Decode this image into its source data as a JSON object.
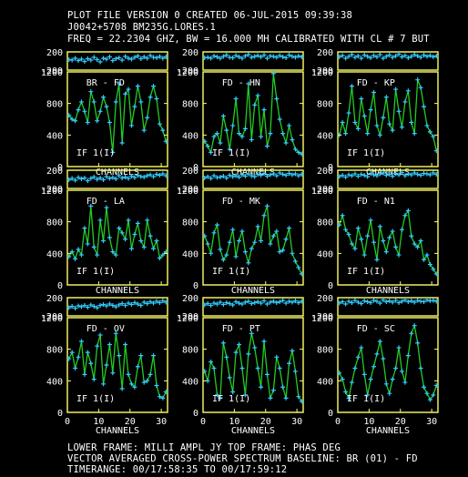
{
  "header": {
    "line1": "PLOT FILE VERSION 0  CREATED 06-JUL-2015 09:39:38",
    "line2": "J0042+5708    BM235G.LORES.1",
    "line3": "FREQ = 22.2304 GHZ, BW = 16.000 MH   CALIBRATED WITH CL # 7 BUT"
  },
  "footer": {
    "line1": "LOWER FRAME: MILLI AMPL JY   TOP FRAME: PHAS DEG",
    "line2": "VECTOR AVERAGED CROSS-POWER SPECTRUM   BASELINE: BR (01) - FD",
    "line3": "TIMERANGE: 00/17:58:35 TO 00/17:59:12"
  },
  "colors": {
    "background": "#000000",
    "frame": "#ffff66",
    "amplitude_line": "#22cc22",
    "marker": "#33ccff",
    "text": "#ffffff"
  },
  "chart_data": {
    "type": "line",
    "xlabel": "CHANNELS",
    "x_ticks": [
      "0",
      "10",
      "20",
      "30"
    ],
    "xlim": [
      0,
      32
    ],
    "phase_ylim": [
      -200,
      200
    ],
    "phase_ticks": [
      "200",
      "-200"
    ],
    "amp_ylim": [
      0,
      1200
    ],
    "amp_ticks": [
      "0",
      "400",
      "800",
      "1200"
    ],
    "panels": [
      {
        "baseline": "BR - FD",
        "if_label": "IF 1(I)",
        "phase": [
          30,
          20,
          60,
          10,
          40,
          -10,
          50,
          20,
          80,
          30,
          -20,
          60,
          40,
          90,
          10,
          50,
          70,
          20,
          100,
          60,
          40,
          80,
          110,
          50,
          90,
          60,
          120,
          80,
          70,
          100,
          60,
          90
        ],
        "amplitude": [
          650,
          600,
          580,
          720,
          820,
          700,
          560,
          950,
          820,
          580,
          700,
          880,
          760,
          560,
          180,
          820,
          1050,
          300,
          920,
          980,
          520,
          760,
          1020,
          820,
          460,
          620,
          880,
          1020,
          860,
          540,
          460,
          320
        ]
      },
      {
        "baseline": "FD - HN",
        "if_label": "IF 1(I)",
        "phase": [
          70,
          80,
          60,
          110,
          90,
          60,
          100,
          130,
          80,
          70,
          120,
          90,
          60,
          110,
          140,
          80,
          100,
          120,
          90,
          130,
          60,
          110,
          100,
          80,
          120,
          90,
          70,
          130,
          100,
          80,
          110,
          90
        ],
        "amplitude": [
          320,
          260,
          180,
          380,
          420,
          300,
          640,
          460,
          220,
          520,
          860,
          420,
          380,
          480,
          1050,
          340,
          780,
          900,
          380,
          720,
          260,
          420,
          1180,
          860,
          600,
          420,
          300,
          520,
          340,
          220,
          180,
          160
        ]
      },
      {
        "baseline": "FD - KP",
        "if_label": "IF 1(I)",
        "phase": [
          90,
          120,
          60,
          100,
          140,
          80,
          110,
          60,
          130,
          100,
          70,
          120,
          90,
          140,
          60,
          100,
          130,
          80,
          110,
          150,
          90,
          120,
          70,
          100,
          140,
          110,
          80,
          130,
          100,
          120,
          90,
          110
        ],
        "amplitude": [
          400,
          560,
          420,
          680,
          1020,
          560,
          480,
          860,
          640,
          420,
          720,
          940,
          520,
          400,
          620,
          880,
          540,
          460,
          980,
          700,
          500,
          820,
          960,
          560,
          420,
          1100,
          1000,
          760,
          520,
          440,
          380,
          200
        ]
      },
      {
        "baseline": "FD - LA",
        "if_label": "IF 1(I)",
        "phase": [
          -10,
          20,
          -20,
          40,
          10,
          30,
          -30,
          20,
          50,
          0,
          30,
          -10,
          60,
          20,
          40,
          10,
          80,
          30,
          50,
          20,
          70,
          40,
          90,
          60,
          50,
          80,
          100,
          60,
          110,
          90,
          120,
          80
        ],
        "amplitude": [
          360,
          420,
          330,
          450,
          380,
          720,
          520,
          1000,
          480,
          380,
          820,
          560,
          980,
          600,
          420,
          380,
          720,
          660,
          580,
          820,
          460,
          640,
          780,
          560,
          480,
          820,
          620,
          460,
          560,
          340,
          380,
          420
        ]
      },
      {
        "baseline": "FD - MK",
        "if_label": "IF 1(I)",
        "phase": [
          30,
          60,
          20,
          80,
          40,
          50,
          70,
          30,
          90,
          60,
          80,
          50,
          100,
          70,
          120,
          80,
          60,
          110,
          90,
          130,
          70,
          100,
          120,
          80,
          140,
          110,
          90,
          130,
          100,
          120,
          80,
          110
        ],
        "amplitude": [
          620,
          520,
          400,
          660,
          760,
          450,
          320,
          380,
          540,
          700,
          360,
          560,
          680,
          420,
          280,
          460,
          540,
          740,
          560,
          880,
          1000,
          520,
          620,
          680,
          420,
          440,
          580,
          720,
          400,
          300,
          220,
          140
        ]
      },
      {
        "baseline": "FD - N1",
        "if_label": "IF 1(I)",
        "phase": [
          60,
          90,
          50,
          100,
          80,
          120,
          70,
          110,
          90,
          60,
          130,
          100,
          80,
          120,
          140,
          90,
          110,
          70,
          130,
          100,
          150,
          80,
          120,
          100,
          140,
          110,
          90,
          130,
          120,
          100,
          140,
          110
        ],
        "amplitude": [
          760,
          880,
          700,
          640,
          520,
          460,
          720,
          580,
          380,
          620,
          820,
          540,
          320,
          740,
          560,
          420,
          600,
          680,
          480,
          380,
          700,
          880,
          940,
          620,
          520,
          480,
          560,
          320,
          380,
          260,
          200,
          140
        ]
      },
      {
        "baseline": "FD - OV",
        "if_label": "IF 1(I)",
        "phase": [
          -20,
          10,
          -30,
          20,
          0,
          30,
          -10,
          40,
          10,
          -20,
          30,
          50,
          20,
          60,
          30,
          0,
          40,
          70,
          30,
          80,
          50,
          90,
          60,
          30,
          100,
          70,
          110,
          80,
          120,
          90,
          130,
          100
        ],
        "amplitude": [
          680,
          760,
          560,
          700,
          900,
          480,
          760,
          620,
          420,
          840,
          980,
          360,
          600,
          860,
          500,
          1000,
          720,
          300,
          860,
          480,
          360,
          320,
          580,
          720,
          380,
          400,
          480,
          720,
          340,
          200,
          180,
          260
        ]
      },
      {
        "baseline": "FD - PT",
        "if_label": "IF 1(I)",
        "phase": [
          40,
          70,
          30,
          80,
          60,
          100,
          50,
          90,
          70,
          40,
          110,
          80,
          60,
          100,
          120,
          70,
          90,
          110,
          80,
          130,
          60,
          100,
          120,
          90,
          110,
          140,
          80,
          120,
          100,
          130,
          90,
          120
        ],
        "amplitude": [
          520,
          400,
          640,
          560,
          220,
          180,
          880,
          700,
          440,
          260,
          760,
          860,
          560,
          220,
          740,
          1000,
          820,
          560,
          320,
          900,
          480,
          180,
          280,
          700,
          560,
          320,
          180,
          620,
          780,
          520,
          200,
          140
        ]
      },
      {
        "baseline": "FD - SC",
        "if_label": "IF 1(I)",
        "phase": [
          80,
          110,
          60,
          120,
          90,
          140,
          100,
          70,
          130,
          110,
          90,
          140,
          120,
          80,
          150,
          110,
          130,
          100,
          140,
          90,
          120,
          150,
          110,
          130,
          100,
          140,
          120,
          110,
          150,
          130,
          140,
          120
        ],
        "amplitude": [
          500,
          420,
          260,
          180,
          380,
          560,
          700,
          820,
          480,
          220,
          420,
          580,
          740,
          900,
          680,
          360,
          240,
          420,
          560,
          820,
          520,
          380,
          720,
          1000,
          1100,
          880,
          560,
          320,
          240,
          160,
          220,
          340
        ]
      }
    ]
  }
}
